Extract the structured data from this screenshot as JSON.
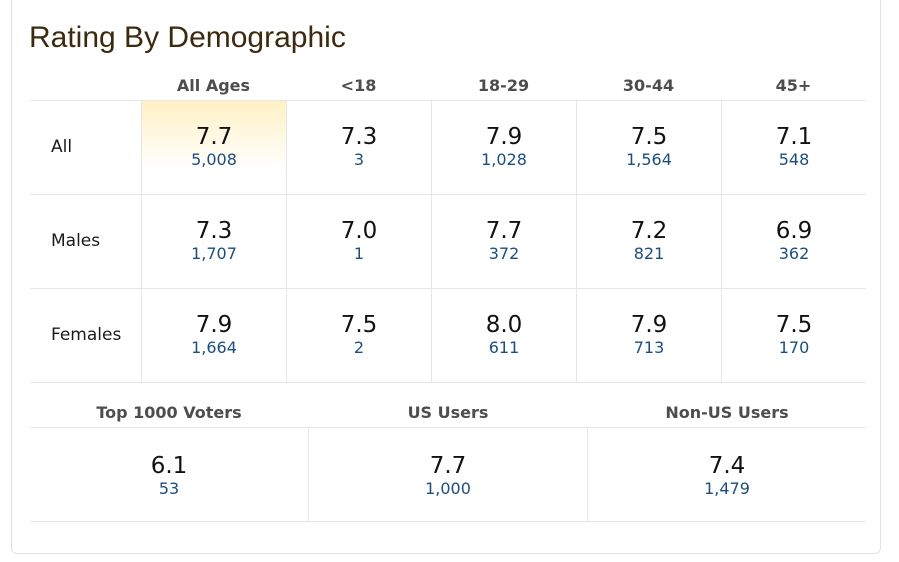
{
  "title": "Rating By Demographic",
  "age_headers": [
    "All Ages",
    "<18",
    "18-29",
    "30-44",
    "45+"
  ],
  "rows": [
    {
      "label": "All",
      "cells": [
        {
          "rating": "7.7",
          "votes": "5,008"
        },
        {
          "rating": "7.3",
          "votes": "3"
        },
        {
          "rating": "7.9",
          "votes": "1,028"
        },
        {
          "rating": "7.5",
          "votes": "1,564"
        },
        {
          "rating": "7.1",
          "votes": "548"
        }
      ]
    },
    {
      "label": "Males",
      "cells": [
        {
          "rating": "7.3",
          "votes": "1,707"
        },
        {
          "rating": "7.0",
          "votes": "1"
        },
        {
          "rating": "7.7",
          "votes": "372"
        },
        {
          "rating": "7.2",
          "votes": "821"
        },
        {
          "rating": "6.9",
          "votes": "362"
        }
      ]
    },
    {
      "label": "Females",
      "cells": [
        {
          "rating": "7.9",
          "votes": "1,664"
        },
        {
          "rating": "7.5",
          "votes": "2"
        },
        {
          "rating": "8.0",
          "votes": "611"
        },
        {
          "rating": "7.9",
          "votes": "713"
        },
        {
          "rating": "7.5",
          "votes": "170"
        }
      ]
    }
  ],
  "groups": [
    {
      "label": "Top 1000 Voters",
      "rating": "6.1",
      "votes": "53"
    },
    {
      "label": "US Users",
      "rating": "7.7",
      "votes": "1,000"
    },
    {
      "label": "Non-US Users",
      "rating": "7.4",
      "votes": "1,479"
    }
  ],
  "colors": {
    "title": "#3c2a0e",
    "votes_link": "#1b4e7e",
    "highlight": "#fff1c4",
    "border": "#e6e6e6"
  }
}
